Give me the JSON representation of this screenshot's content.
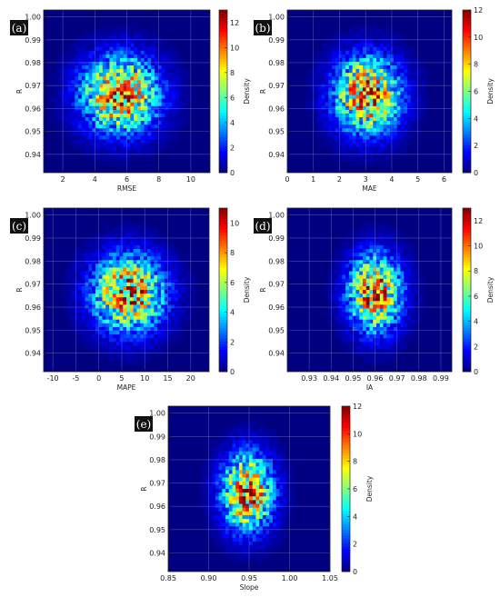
{
  "chart_data": [
    {
      "type": "heatmap",
      "panel_label": "(a)",
      "xlabel": "RMSE",
      "ylabel": "R",
      "colorbar_label": "Density",
      "xlim": [
        0.8,
        11.2
      ],
      "ylim": [
        0.932,
        1.003
      ],
      "xticks": [
        "2",
        "4",
        "6",
        "8",
        "10"
      ],
      "yticks": [
        "0.94",
        "0.95",
        "0.96",
        "0.97",
        "0.98",
        "0.99",
        "1.00"
      ],
      "colorbar_range": [
        0,
        13
      ],
      "colorbar_ticks": [
        "0",
        "2",
        "4",
        "6",
        "8",
        "10",
        "12"
      ],
      "density_center": [
        5.6,
        0.966
      ],
      "density_spread": [
        1.6,
        0.011
      ],
      "peak_density": 12.5,
      "bins": [
        48,
        44
      ],
      "grid": true,
      "colormap": "jet"
    },
    {
      "type": "heatmap",
      "panel_label": "(b)",
      "xlabel": "MAE",
      "ylabel": "R",
      "colorbar_label": "Density",
      "xlim": [
        0,
        6.3
      ],
      "ylim": [
        0.932,
        1.003
      ],
      "xticks": [
        "0",
        "1",
        "2",
        "3",
        "4",
        "5",
        "6"
      ],
      "yticks": [
        "0.94",
        "0.95",
        "0.96",
        "0.97",
        "0.98",
        "0.99",
        "1.00"
      ],
      "colorbar_range": [
        0,
        12
      ],
      "colorbar_ticks": [
        "0",
        "2",
        "4",
        "6",
        "8",
        "10",
        "12"
      ],
      "density_center": [
        3.05,
        0.966
      ],
      "density_spread": [
        0.85,
        0.011
      ],
      "peak_density": 11.5,
      "bins": [
        48,
        44
      ],
      "grid": true,
      "colormap": "jet"
    },
    {
      "type": "heatmap",
      "panel_label": "(c)",
      "xlabel": "MAPE",
      "ylabel": "R",
      "colorbar_label": "Density",
      "xlim": [
        -12,
        24
      ],
      "ylim": [
        0.932,
        1.003
      ],
      "xticks": [
        "-10",
        "-5",
        "0",
        "5",
        "10",
        "15",
        "20"
      ],
      "yticks": [
        "0.94",
        "0.95",
        "0.96",
        "0.97",
        "0.98",
        "0.99",
        "1.00"
      ],
      "colorbar_range": [
        0,
        11
      ],
      "colorbar_ticks": [
        "0",
        "2",
        "4",
        "6",
        "8",
        "10"
      ],
      "density_center": [
        6.5,
        0.966
      ],
      "density_spread": [
        5.2,
        0.011
      ],
      "peak_density": 10.5,
      "bins": [
        48,
        44
      ],
      "grid": true,
      "colormap": "jet"
    },
    {
      "type": "heatmap",
      "panel_label": "(d)",
      "xlabel": "IA",
      "ylabel": "R",
      "colorbar_label": "Density",
      "xlim": [
        0.92,
        0.995
      ],
      "ylim": [
        0.932,
        1.003
      ],
      "xticks": [
        "0.93",
        "0.94",
        "0.95",
        "0.96",
        "0.97",
        "0.98",
        "0.99"
      ],
      "yticks": [
        "0.94",
        "0.95",
        "0.96",
        "0.97",
        "0.98",
        "0.99",
        "1.00"
      ],
      "colorbar_range": [
        0,
        13
      ],
      "colorbar_ticks": [
        "0",
        "2",
        "4",
        "6",
        "8",
        "10",
        "12"
      ],
      "density_center": [
        0.96,
        0.966
      ],
      "density_spread": [
        0.008,
        0.011
      ],
      "peak_density": 12.5,
      "bins": [
        48,
        44
      ],
      "grid": true,
      "colormap": "jet"
    },
    {
      "type": "heatmap",
      "panel_label": "(e)",
      "xlabel": "Slope",
      "ylabel": "R",
      "colorbar_label": "Density",
      "xlim": [
        0.85,
        1.05
      ],
      "ylim": [
        0.932,
        1.003
      ],
      "xticks": [
        "0.85",
        "0.90",
        "0.95",
        "1.00",
        "1.05"
      ],
      "yticks": [
        "0.94",
        "0.95",
        "0.96",
        "0.97",
        "0.98",
        "0.99",
        "1.00"
      ],
      "colorbar_range": [
        0,
        12
      ],
      "colorbar_ticks": [
        "0",
        "2",
        "4",
        "6",
        "8",
        "10",
        "12"
      ],
      "density_center": [
        0.948,
        0.966
      ],
      "density_spread": [
        0.021,
        0.011
      ],
      "peak_density": 11.5,
      "bins": [
        48,
        44
      ],
      "grid": true,
      "colormap": "jet"
    }
  ]
}
